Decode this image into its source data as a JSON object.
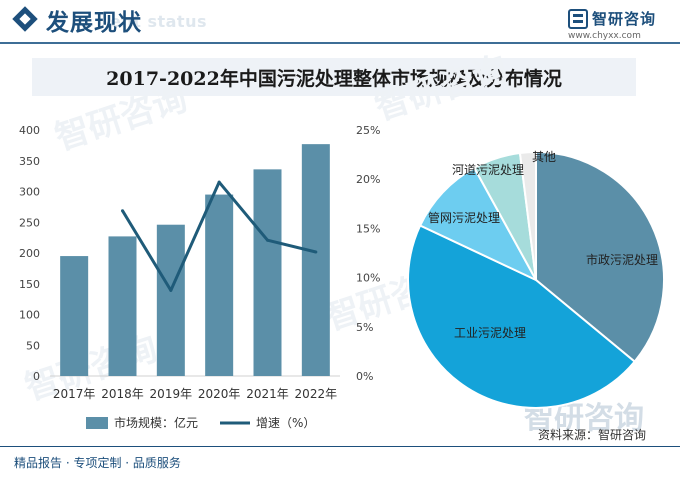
{
  "header": {
    "section_title": "发展现状",
    "section_subtitle": "ent status",
    "brand_name": "智研咨询",
    "brand_url": "www.chyxx.com"
  },
  "chart_title": "2017-2022年中国污泥处理整体市场规模及分布情况",
  "footer": {
    "left_text": "精品报告 · 专项定制 · 品质服务",
    "source": "资料来源：智研咨询"
  },
  "watermark": "智研咨询",
  "colors": {
    "brand": "#1d4f7c",
    "bar": "#5b8fa8",
    "line": "#1f5b79",
    "pie": [
      "#5b8fa8",
      "#14a3d9",
      "#6dcdf0",
      "#a6dcdb",
      "#eaeaea"
    ]
  },
  "chart_data": [
    {
      "type": "bar",
      "title": "2017-2022年中国污泥处理整体市场规模及分布情况",
      "categories": [
        "2017年",
        "2018年",
        "2019年",
        "2020年",
        "2021年",
        "2022年"
      ],
      "series": [
        {
          "name": "市场规模：亿元",
          "type": "bar",
          "axis": "left",
          "values": [
            195,
            227,
            246,
            295,
            336,
            377
          ]
        },
        {
          "name": "增速（%）",
          "type": "line",
          "axis": "right",
          "values": [
            null,
            16.8,
            8.7,
            19.7,
            13.8,
            12.6
          ]
        }
      ],
      "ylim": [
        0,
        400
      ],
      "yticks": [
        0,
        50,
        100,
        150,
        200,
        250,
        300,
        350,
        400
      ],
      "y2lim": [
        0,
        25
      ],
      "y2ticks": [
        "0%",
        "5%",
        "10%",
        "15%",
        "20%",
        "25%"
      ],
      "legend": "bottom",
      "grid": false
    },
    {
      "type": "pie",
      "labels": [
        "市政污泥处理",
        "工业污泥处理",
        "管网污泥处理",
        "河道污泥处理",
        "其他"
      ],
      "values": [
        36,
        46,
        10,
        6,
        2
      ]
    }
  ]
}
